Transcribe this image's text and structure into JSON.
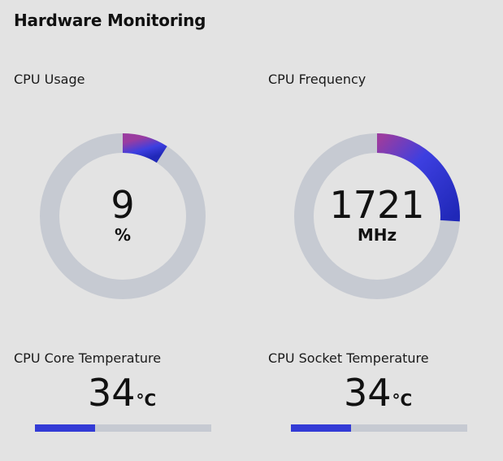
{
  "title": "Hardware Monitoring",
  "colors": {
    "background": "#e3e3e3",
    "track": "#c6cad2",
    "gradient_start": "#9a3ca0",
    "gradient_mid": "#3d3fe0",
    "gradient_end": "#2028b8",
    "bar_fill": "#333bd6"
  },
  "cpu_usage": {
    "label": "CPU Usage",
    "value": "9",
    "unit": "%",
    "fraction": 0.09
  },
  "cpu_frequency": {
    "label": "CPU Frequency",
    "value": "1721",
    "unit": "MHz",
    "fraction": 0.26
  },
  "core_temp": {
    "label": "CPU Core Temperature",
    "value": "34",
    "unit": "°C",
    "fraction": 0.34
  },
  "socket_temp": {
    "label": "CPU Socket Temperature",
    "value": "34",
    "unit": "°C",
    "fraction": 0.34
  }
}
